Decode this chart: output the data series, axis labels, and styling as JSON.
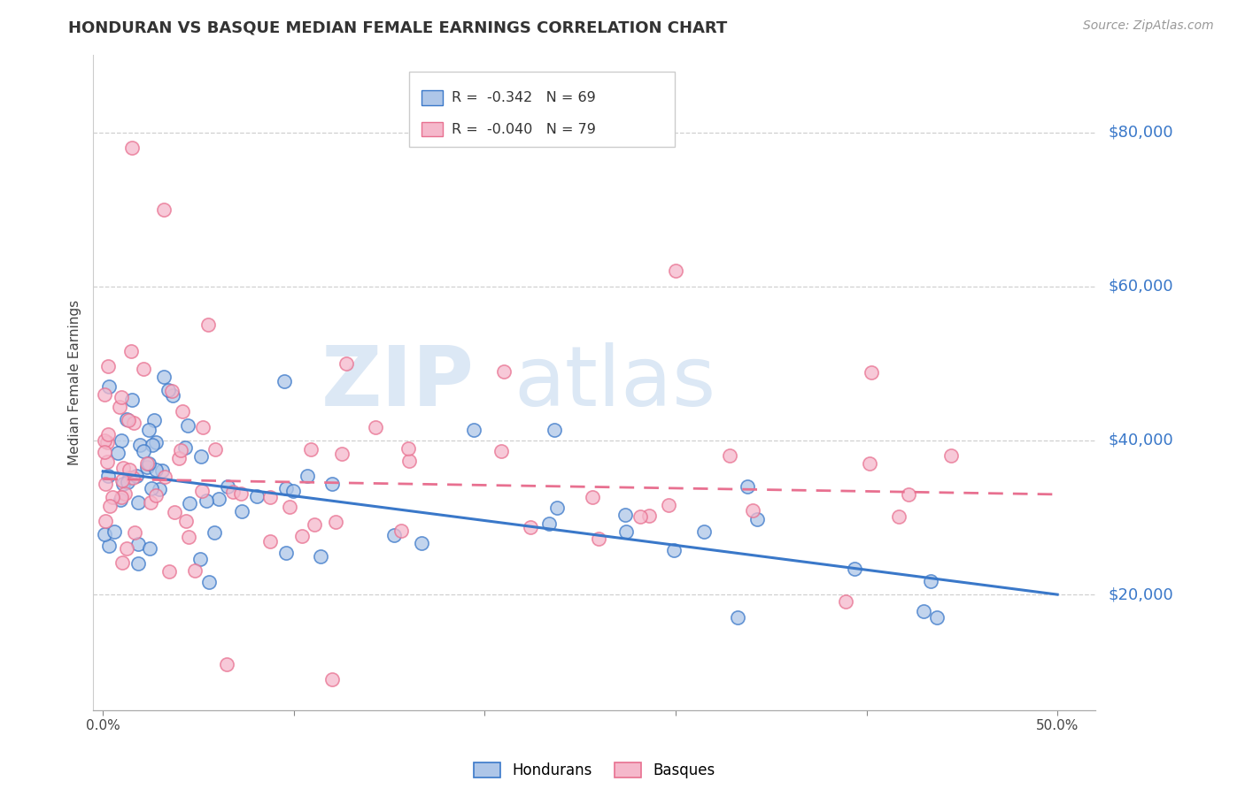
{
  "title": "HONDURAN VS BASQUE MEDIAN FEMALE EARNINGS CORRELATION CHART",
  "source": "Source: ZipAtlas.com",
  "ylabel": "Median Female Earnings",
  "ytick_labels": [
    "$20,000",
    "$40,000",
    "$60,000",
    "$80,000"
  ],
  "ytick_values": [
    20000,
    40000,
    60000,
    80000
  ],
  "ylim": [
    5000,
    90000
  ],
  "xlim": [
    -0.005,
    0.52
  ],
  "xtick_values": [
    0.0,
    0.1,
    0.2,
    0.3,
    0.4,
    0.5
  ],
  "xtick_labels": [
    "0.0%",
    "",
    "",
    "",
    "",
    "50.0%"
  ],
  "legend_line1": "R =  -0.342   N = 69",
  "legend_line2": "R =  -0.040   N = 79",
  "honduran_color": "#aec6e8",
  "basque_color": "#f5b8cb",
  "trend_honduran_color": "#3a78c9",
  "trend_basque_color": "#e87090",
  "hon_trend_x0": 0.0,
  "hon_trend_y0": 36000,
  "hon_trend_x1": 0.5,
  "hon_trend_y1": 20000,
  "bas_trend_x0": 0.0,
  "bas_trend_y0": 35000,
  "bas_trend_x1": 0.5,
  "bas_trend_y1": 33000,
  "watermark_zip": "ZIP",
  "watermark_atlas": "atlas",
  "bottom_legend_hondurans": "Hondurans",
  "bottom_legend_basques": "Basques"
}
